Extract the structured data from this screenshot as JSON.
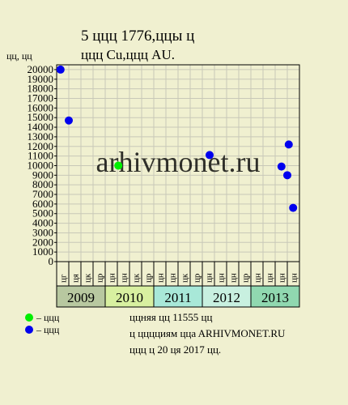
{
  "chart_data": {
    "type": "scatter",
    "title": "5 ццц 1776,ццы ц",
    "subtitle": "ццц Cu,ццц AU.",
    "y_label": "цц, цц",
    "watermark": "arhivmonet.ru",
    "xlim": [
      2009,
      2014
    ],
    "ylim": [
      0,
      20500
    ],
    "yticks": [
      0,
      1000,
      2000,
      3000,
      4000,
      5000,
      6000,
      7000,
      8000,
      9000,
      10000,
      11000,
      12000,
      13000,
      14000,
      15000,
      16000,
      17000,
      18000,
      19000,
      20000
    ],
    "grid": true,
    "years": [
      "2009",
      "2010",
      "2011",
      "2012",
      "2013"
    ],
    "month_labels": [
      "цг",
      "ця",
      "цк",
      "цр",
      "цн",
      "цн",
      "цк",
      "цр",
      "цн",
      "цн",
      "цк",
      "цр",
      "цн",
      "цн",
      "цн",
      "цр",
      "цн",
      "цн",
      "цн",
      "цн"
    ],
    "series": [
      {
        "name": "– ццц",
        "color": "#00ee00",
        "x": [
          2010.27
        ],
        "values": [
          10000
        ]
      },
      {
        "name": "– ццц",
        "color": "#0000ee",
        "x": [
          2009.08,
          2009.25,
          2012.15,
          2013.63,
          2013.75,
          2013.78,
          2013.87
        ],
        "values": [
          20000,
          14700,
          11100,
          9900,
          9000,
          12200,
          5600
        ]
      }
    ],
    "notes": [
      "ццняя цц 11555 цц",
      "ц цццциям ццa ARHIVMONET.RU",
      "ццц ц 20 ця 2017 цц."
    ]
  }
}
